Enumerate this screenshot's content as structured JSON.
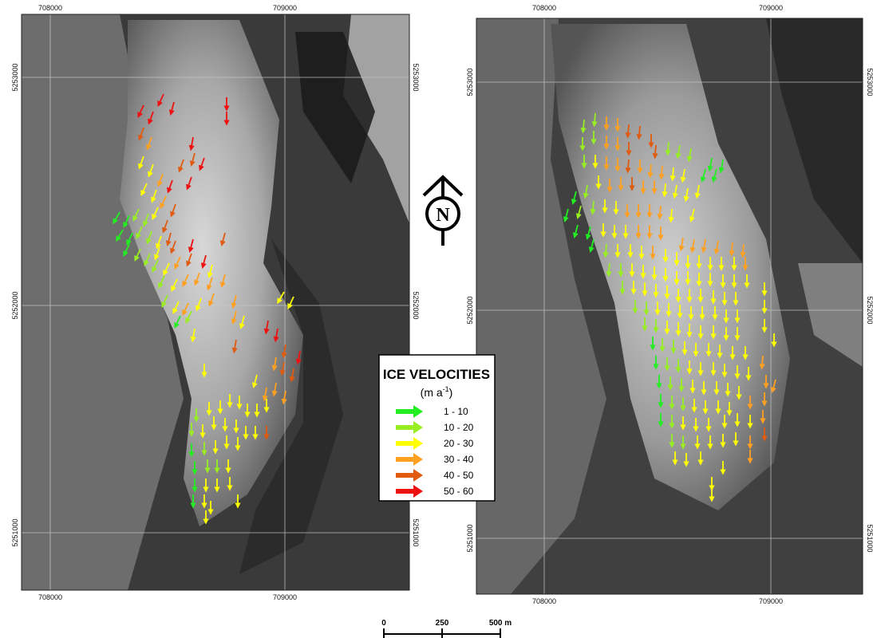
{
  "left_map": {
    "x_ticks": [
      "708000",
      "709000"
    ],
    "y_ticks": [
      "5253000",
      "5252000",
      "5251000"
    ]
  },
  "right_map": {
    "x_ticks": [
      "708000",
      "709000"
    ],
    "y_ticks": [
      "5253000",
      "5252000",
      "5251000"
    ]
  },
  "north_arrow": {
    "letter": "N"
  },
  "legend": {
    "title": "ICE VELOCITIES",
    "unit_prefix": "(m a",
    "unit_exp": "-1",
    "unit_suffix": ")",
    "classes": [
      {
        "label": "1 - 10",
        "color": "#22ee22"
      },
      {
        "label": "10 - 20",
        "color": "#99ee22"
      },
      {
        "label": "20 - 30",
        "color": "#ffff00"
      },
      {
        "label": "30 - 40",
        "color": "#ffa020"
      },
      {
        "label": "40 - 50",
        "color": "#e05a10"
      },
      {
        "label": "50 - 60",
        "color": "#ee1111"
      }
    ]
  },
  "scale_bar": {
    "labels": [
      "0",
      "250",
      "500 m"
    ]
  }
}
